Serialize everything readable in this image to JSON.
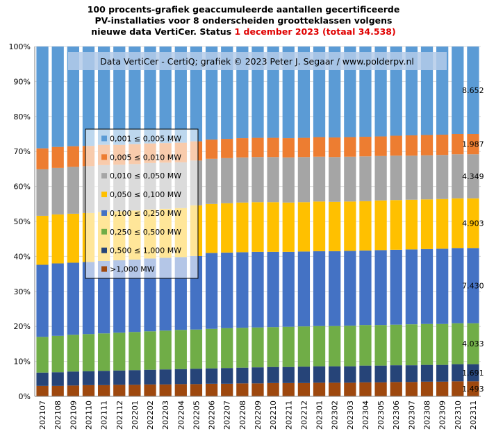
{
  "title": {
    "line1": "100 procents-grafiek geaccumuleerde aantallen gecertificeerde",
    "line2": "PV-installaties voor 8 onderscheiden grootteklassen volgens",
    "line3_prefix": "nieuwe data VertiCer. Status ",
    "line3_status": "1 december 2023 (totaal 34.538)"
  },
  "credit": "Data VertiCer - CertiQ; grafiek © 2023 Peter J. Segaar / www.polderpv.nl",
  "colors": {
    "c8": "#5b9bd5",
    "c7": "#ed7d31",
    "c6": "#a5a5a5",
    "c5": "#ffc000",
    "c4": "#4472c4",
    "c3": "#70ad47",
    "c2": "#264478",
    "c1": "#9e480e",
    "creditBox": "#b4cbe9"
  },
  "chart_data": {
    "type": "bar",
    "stacked": "percent",
    "categories": [
      "202107",
      "202108",
      "202109",
      "202110",
      "202111",
      "202112",
      "202201",
      "202202",
      "202203",
      "202204",
      "202205",
      "202206",
      "202207",
      "202208",
      "202209",
      "202210",
      "202211",
      "202212",
      "202301",
      "202302",
      "202303",
      "202304",
      "202305",
      "202306",
      "202307",
      "202308",
      "202309",
      "202310",
      "202311"
    ],
    "ylim": [
      0,
      100
    ],
    "yticks": [
      "0%",
      "10%",
      "20%",
      "30%",
      "40%",
      "50%",
      "60%",
      "70%",
      "80%",
      "90%",
      "100%"
    ],
    "legend_position": "inside-left",
    "series": [
      {
        "name": ">1,000 MW",
        "color": "#9e480e",
        "values": [
          3.0,
          3.0,
          3.1,
          3.2,
          3.2,
          3.3,
          3.3,
          3.4,
          3.4,
          3.5,
          3.5,
          3.6,
          3.6,
          3.7,
          3.7,
          3.8,
          3.8,
          3.8,
          3.9,
          3.9,
          3.9,
          4.0,
          4.0,
          4.1,
          4.1,
          4.2,
          4.2,
          4.3,
          4.3
        ]
      },
      {
        "name": "0,500 ≤ 1,000 MW",
        "color": "#264478",
        "values": [
          3.8,
          3.9,
          4.0,
          4.0,
          4.1,
          4.1,
          4.2,
          4.2,
          4.3,
          4.3,
          4.4,
          4.4,
          4.5,
          4.5,
          4.6,
          4.6,
          4.6,
          4.7,
          4.7,
          4.7,
          4.7,
          4.8,
          4.8,
          4.8,
          4.8,
          4.8,
          4.8,
          4.9,
          4.9
        ]
      },
      {
        "name": "0,250 ≤ 0,500 MW",
        "color": "#70ad47",
        "values": [
          10.2,
          10.4,
          10.5,
          10.6,
          10.7,
          10.8,
          10.9,
          11.0,
          11.1,
          11.2,
          11.2,
          11.3,
          11.4,
          11.4,
          11.4,
          11.4,
          11.5,
          11.5,
          11.5,
          11.5,
          11.6,
          11.6,
          11.6,
          11.6,
          11.7,
          11.7,
          11.7,
          11.7,
          11.7
        ]
      },
      {
        "name": "0,100 ≤ 0,250 MW",
        "color": "#4472c4",
        "values": [
          20.6,
          20.7,
          20.6,
          20.6,
          20.7,
          20.7,
          20.7,
          20.8,
          20.8,
          20.8,
          21.0,
          21.7,
          21.6,
          21.6,
          21.6,
          21.5,
          21.4,
          21.4,
          21.4,
          21.4,
          21.4,
          21.3,
          21.4,
          21.4,
          21.4,
          21.4,
          21.5,
          21.5,
          21.5
        ]
      },
      {
        "name": "0,050 ≤ 0,100 MW",
        "color": "#ffc000",
        "values": [
          14.0,
          14.0,
          14.0,
          14.0,
          14.0,
          14.0,
          14.0,
          14.0,
          14.0,
          14.0,
          14.5,
          14.0,
          14.1,
          14.2,
          14.2,
          14.2,
          14.1,
          14.1,
          14.2,
          14.1,
          14.1,
          14.1,
          14.2,
          14.2,
          14.2,
          14.2,
          14.2,
          14.2,
          14.2
        ]
      },
      {
        "name": "0,010 ≤ 0,050 MW",
        "color": "#a5a5a5",
        "values": [
          13.3,
          13.3,
          13.4,
          13.4,
          13.4,
          13.3,
          13.3,
          13.3,
          13.2,
          13.1,
          12.8,
          12.9,
          12.9,
          12.9,
          12.9,
          12.9,
          12.9,
          12.9,
          12.8,
          12.8,
          12.8,
          12.8,
          12.7,
          12.7,
          12.6,
          12.6,
          12.6,
          12.6,
          12.6
        ]
      },
      {
        "name": "0,005 ≤ 0,010 MW",
        "color": "#ed7d31",
        "values": [
          6.0,
          6.0,
          5.9,
          5.8,
          5.8,
          5.7,
          5.7,
          5.6,
          5.6,
          5.6,
          5.5,
          5.5,
          5.5,
          5.5,
          5.5,
          5.5,
          5.5,
          5.5,
          5.6,
          5.6,
          5.6,
          5.6,
          5.6,
          5.7,
          5.8,
          5.8,
          5.8,
          5.8,
          5.8
        ]
      },
      {
        "name": "0,001 ≤ 0,005 MW",
        "color": "#5b9bd5",
        "values": [
          29.1,
          28.7,
          28.5,
          28.4,
          28.1,
          28.1,
          27.9,
          27.7,
          27.6,
          27.5,
          27.1,
          26.6,
          26.4,
          26.2,
          26.1,
          26.1,
          26.2,
          26.1,
          25.9,
          26.0,
          25.9,
          25.8,
          25.7,
          25.5,
          25.4,
          25.3,
          25.2,
          25.0,
          25.0
        ]
      }
    ],
    "segment_labels_last_bar": [
      "1.493",
      "1.691",
      "4.033",
      "7.430",
      "4.903",
      "4.349",
      "1.987",
      "8.652"
    ]
  }
}
